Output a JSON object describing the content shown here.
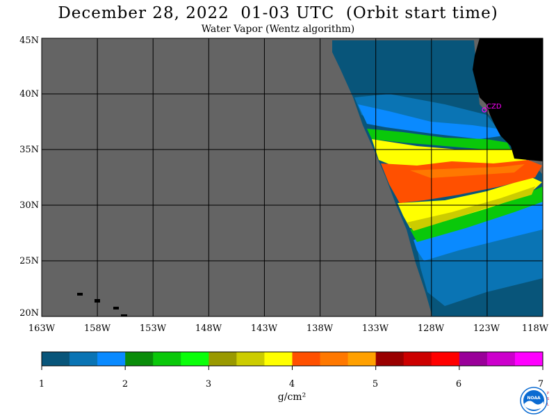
{
  "title": "December 28, 2022  01-03 UTC  (Orbit start time)",
  "subtitle": "Water Vapor (Wentz algorithm)",
  "map": {
    "lat_labels": [
      "45N",
      "40N",
      "35N",
      "30N",
      "25N",
      "20N"
    ],
    "lon_labels": [
      "163W",
      "158W",
      "153W",
      "148W",
      "143W",
      "138W",
      "133W",
      "128W",
      "123W",
      "118W"
    ],
    "lat_range": [
      20,
      45
    ],
    "lon_range": [
      -163,
      -118
    ],
    "station_label": "CZD",
    "colors": {
      "no_data": "#646464",
      "land": "#000000",
      "grid": "#000000",
      "station": "#ff00ff"
    }
  },
  "colorbar": {
    "tick_labels": [
      "1",
      "2",
      "3",
      "4",
      "5",
      "6",
      "7"
    ],
    "units": "g/cm²",
    "colors": [
      "#08557a",
      "#0a74b4",
      "#0a8aff",
      "#0a8c0a",
      "#0ac80a",
      "#0aff0a",
      "#999900",
      "#cccc00",
      "#ffff00",
      "#ff5000",
      "#ff7800",
      "#ffa000",
      "#990000",
      "#cc0000",
      "#ff0000",
      "#990099",
      "#cc00cc",
      "#ff00ff"
    ]
  },
  "logo": {
    "text": "NOAA",
    "side_text": "PSL",
    "color": "#0a6ad1"
  }
}
